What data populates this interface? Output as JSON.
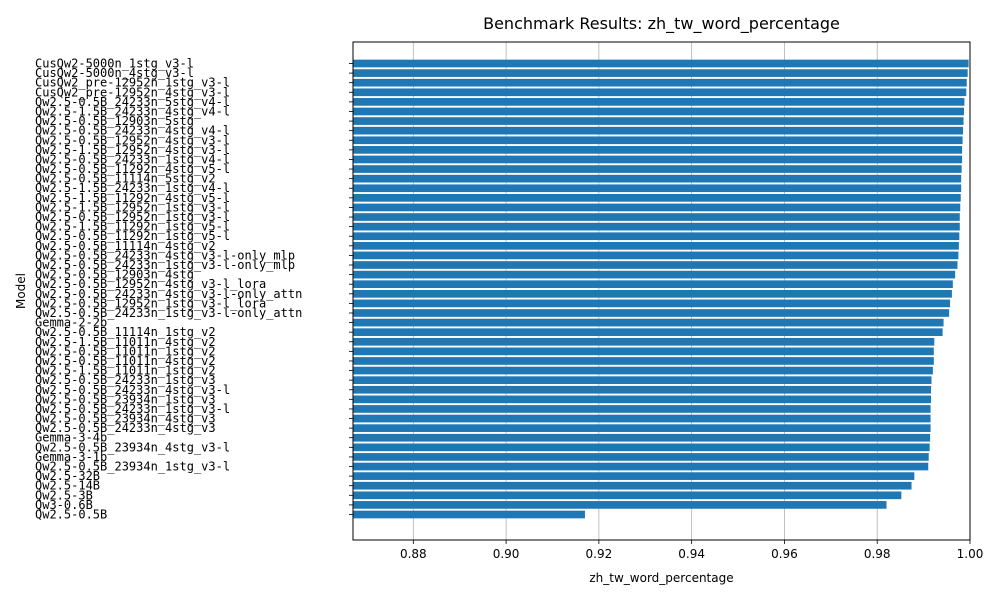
{
  "chart_data": {
    "type": "bar",
    "orientation": "horizontal",
    "title": "Benchmark Results: zh_tw_word_percentage",
    "xlabel": "zh_tw_word_percentage",
    "ylabel": "Model",
    "xlim": [
      0.867,
      1.0
    ],
    "xticks": [
      "0.88",
      "0.90",
      "0.92",
      "0.94",
      "0.96",
      "0.98",
      "1.00"
    ],
    "grid": "x",
    "bar_color": "#1f77b4",
    "categories": [
      "CusQw2-5000n_1stg_v3-l",
      "CusQw2-5000n_4stg_v3-l",
      "CusQw2_pre-12952n_1stg_v3-l",
      "CusQw2_pre-12952n_4stg_v3-l",
      "Qw2.5-0.5B_24233n_5stg_v4-l",
      "Qw2.5-1.5B_24233n_4stg_v4-l",
      "Qw2.5-0.5B_12903n_5stg",
      "Qw2.5-0.5B_24233n_4stg_v4-l",
      "Qw2.5-0.5B_12952n_4stg_v3-l",
      "Qw2.5-1.5B_12952n_4stg_v3-l",
      "Qw2.5-0.5B_24233n_1stg_v4-l",
      "Qw2.5-0.5B_11292n_4stg_v5-l",
      "Qw2.5-0.5B_11114n_5stg_v2",
      "Qw2.5-1.5B_24233n_1stg_v4-l",
      "Qw2.5-1.5B_11292n_4stg_v5-l",
      "Qw2.5-1.5B_12952n_1stg_v3-l",
      "Qw2.5-0.5B_12952n_1stg_v3-l",
      "Qw2.5-1.5B_11292n_1stg_v5-l",
      "Qw2.5-0.5B_11292n_1stg_v5-l",
      "Qw2.5-0.5B_11114n_4stg_v2",
      "Qw2.5-0.5B_24233n_4stg_v3-l-only_mlp",
      "Qw2.5-0.5B_24233n_1stg_v3-l-only_mlp",
      "Qw2.5-0.5B_12903n_4stg",
      "Qw2.5-0.5B_12952n_4stg_v3-l_lora",
      "Qw2.5-0.5B_24233n_4stg_v3-l-only_attn",
      "Qw2.5-0.5B_12952n_1stg_v3-l_lora",
      "Qw2.5-0.5B_24233n_1stg_v3-l-only_attn",
      "Gemma-2-2b",
      "Qw2.5-0.5B_11114n_1stg_v2",
      "Qw2.5-1.5B_11011n_4stg_v2",
      "Qw2.5-0.5B_11011n_1stg_v2",
      "Qw2.5-0.5B_11011n_4stg_v2",
      "Qw2.5-1.5B_11011n_1stg_v2",
      "Qw2.5-0.5B_24233n_1stg_v3",
      "Qw2.5-0.5B_24233n_4stg_v3-l",
      "Qw2.5-0.5B_23934n_1stg_v3",
      "Qw2.5-0.5B_24233n_1stg_v3-l",
      "Qw2.5-0.5B_23934n_4stg_v3",
      "Qw2.5-0.5B_24233n_4stg_v3",
      "Gemma-3-4b",
      "Qw2.5-0.5B_23934n_4stg_v3-l",
      "Gemma-3-1b",
      "Qw2.5-0.5B_23934n_1stg_v3-l",
      "Qw2.5-32B",
      "Qw2.5-14B",
      "Qw2.5-3B",
      "Qw3-0.6B",
      "Qw2.5-0.5B"
    ],
    "values": [
      0.9997,
      0.9995,
      0.9993,
      0.9992,
      0.9988,
      0.9987,
      0.9986,
      0.9985,
      0.9984,
      0.9983,
      0.9983,
      0.9982,
      0.9981,
      0.9981,
      0.998,
      0.9979,
      0.9978,
      0.9978,
      0.9977,
      0.9976,
      0.9975,
      0.9973,
      0.9968,
      0.9963,
      0.9961,
      0.9957,
      0.9955,
      0.9943,
      0.9941,
      0.9923,
      0.9922,
      0.9922,
      0.992,
      0.9917,
      0.9916,
      0.9916,
      0.9915,
      0.9915,
      0.9915,
      0.9914,
      0.9913,
      0.9911,
      0.991,
      0.988,
      0.9874,
      0.9852,
      0.982,
      0.917
    ]
  }
}
